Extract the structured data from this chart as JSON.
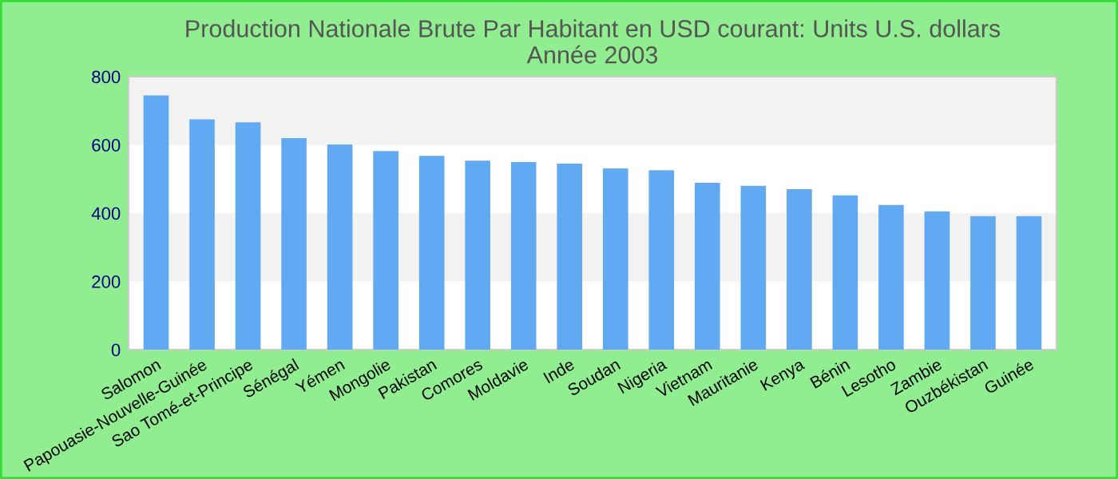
{
  "chart_data": {
    "type": "bar",
    "title": "Production Nationale Brute Par Habitant en USD courant: Units U.S. dollars\nAnnée 2003",
    "categories": [
      "Salomon",
      "Papouasie-Nouvelle-Guinée",
      "Sao Tomé-et-Principe",
      "Sénégal",
      "Yémen",
      "Mongolie",
      "Pakistan",
      "Comores",
      "Moldavie",
      "Inde",
      "Soudan",
      "Nigeria",
      "Vietnam",
      "Mauritanie",
      "Kenya",
      "Bénin",
      "Lesotho",
      "Zambie",
      "Ouzbékistan",
      "Guinée"
    ],
    "values": [
      745,
      675,
      666,
      620,
      601,
      582,
      568,
      554,
      550,
      545,
      531,
      526,
      489,
      480,
      470,
      452,
      424,
      405,
      391,
      391
    ],
    "color": "#62a9f4",
    "ylim": [
      0,
      800
    ],
    "yticks": [
      0,
      200,
      400,
      600,
      800
    ],
    "bands": [
      {
        "axis": "y",
        "from": 200,
        "to": 400,
        "color": "#f2f2f2"
      },
      {
        "axis": "y",
        "from": 600,
        "to": 800,
        "color": "#f2f2f2"
      }
    ]
  }
}
